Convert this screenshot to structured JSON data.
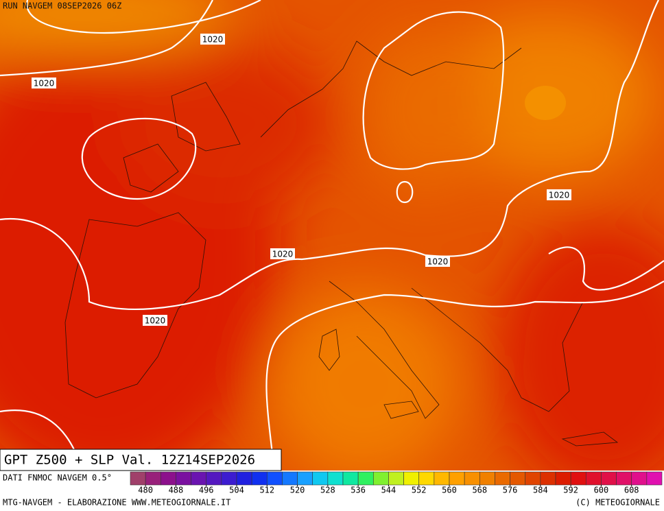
{
  "header": {
    "run": "RUN NAVGEM 08SEP2026 06Z"
  },
  "isobar_labels": [
    "1020",
    "1020",
    "1020",
    "1020",
    "1020",
    "1020"
  ],
  "footer": {
    "title": "GPT Z500 + SLP Val. 12Z14SEP2026",
    "source": "DATI FNMOC NAVGEM 0.5°",
    "credits_left": "MTG-NAVGEM - ELABORAZIONE WWW.METEOGIORNALE.IT",
    "credits_right": "(C) METEOGIORNALE"
  },
  "colorbar": {
    "ticks": [
      480,
      488,
      496,
      504,
      512,
      520,
      528,
      536,
      544,
      552,
      560,
      568,
      576,
      584,
      592,
      600,
      608
    ],
    "colors": [
      "#a0406a",
      "#98207a",
      "#8c108c",
      "#7a10a0",
      "#6a14b0",
      "#5418c0",
      "#3c1cd0",
      "#2020e0",
      "#1030f0",
      "#1050ff",
      "#1478ff",
      "#18a0ff",
      "#10c8f0",
      "#10e0d0",
      "#10e8a0",
      "#30f060",
      "#80f030",
      "#c0f020",
      "#f0f000",
      "#ffd800",
      "#ffb800",
      "#ffa000",
      "#f89000",
      "#f08000",
      "#ea6a00",
      "#e45800",
      "#e04400",
      "#dc3000",
      "#dc1c00",
      "#e01010",
      "#e0102c",
      "#e01048",
      "#e01068",
      "#e0108c",
      "#e010b0"
    ]
  }
}
